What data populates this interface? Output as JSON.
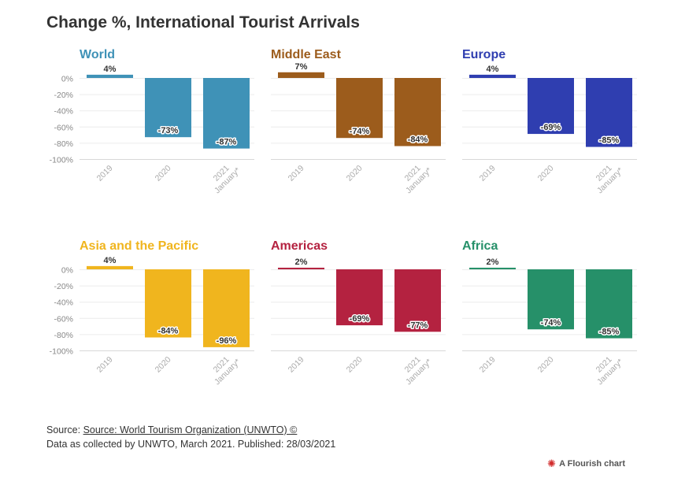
{
  "title": "Change %, International Tourist Arrivals",
  "source": {
    "prefix": "Source: ",
    "link_text": "Source: World Tourism Organization (UNWTO) ©",
    "note": "Data as collected by UNWTO, March 2021. Published: 28/03/2021"
  },
  "credit": {
    "text": "A Flourish chart",
    "icon": "flourish-logo-icon"
  },
  "chart_data": [
    {
      "type": "bar",
      "title": "World",
      "color": "#3f92b7",
      "categories": [
        "2019",
        "2020",
        "2021 January*"
      ],
      "values": [
        4,
        -73,
        -87
      ],
      "labels": [
        "4%",
        "-73%",
        "-87%"
      ],
      "ylim": [
        -100,
        4
      ],
      "yticks": [
        "0%",
        "-20%",
        "-40%",
        "-60%",
        "-80%",
        "-100%"
      ],
      "grid": true
    },
    {
      "type": "bar",
      "title": "Middle East",
      "color": "#9c5c1c",
      "categories": [
        "2019",
        "2020",
        "2021 January*"
      ],
      "values": [
        7,
        -74,
        -84
      ],
      "labels": [
        "7%",
        "-74%",
        "-84%"
      ],
      "ylim": [
        -100,
        7
      ],
      "grid": true
    },
    {
      "type": "bar",
      "title": "Europe",
      "color": "#2f3eb0",
      "categories": [
        "2019",
        "2020",
        "2021 January*"
      ],
      "values": [
        4,
        -69,
        -85
      ],
      "labels": [
        "4%",
        "-69%",
        "-85%"
      ],
      "ylim": [
        -100,
        4
      ],
      "grid": true
    },
    {
      "type": "bar",
      "title": "Asia and the Pacific",
      "color": "#f0b51e",
      "categories": [
        "2019",
        "2020",
        "2021 January*"
      ],
      "values": [
        4,
        -84,
        -96
      ],
      "labels": [
        "4%",
        "-84%",
        "-96%"
      ],
      "ylim": [
        -100,
        4
      ],
      "yticks": [
        "0%",
        "-20%",
        "-40%",
        "-60%",
        "-80%",
        "-100%"
      ],
      "grid": true
    },
    {
      "type": "bar",
      "title": "Americas",
      "color": "#b42240",
      "categories": [
        "2019",
        "2020",
        "2021 January*"
      ],
      "values": [
        2,
        -69,
        -77
      ],
      "labels": [
        "2%",
        "-69%",
        "-77%"
      ],
      "ylim": [
        -100,
        2
      ],
      "grid": true
    },
    {
      "type": "bar",
      "title": "Africa",
      "color": "#269069",
      "categories": [
        "2019",
        "2020",
        "2021 January*"
      ],
      "values": [
        2,
        -74,
        -85
      ],
      "labels": [
        "2%",
        "-74%",
        "-85%"
      ],
      "ylim": [
        -100,
        2
      ],
      "grid": true
    }
  ]
}
